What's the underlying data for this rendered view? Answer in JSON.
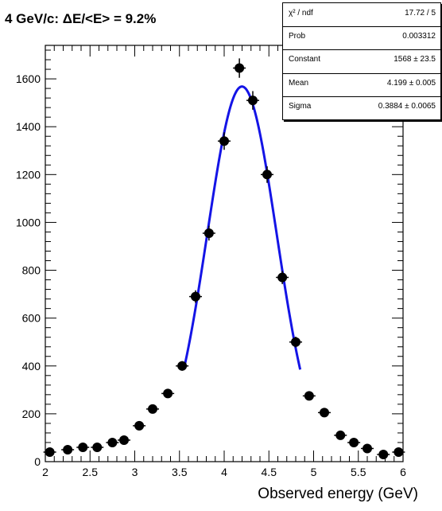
{
  "title": "4 GeV/c: ΔE/<E> = 9.2%",
  "stats": [
    {
      "label": "χ² / ndf",
      "value": "17.72 / 5"
    },
    {
      "label": "Prob",
      "value": "0.003312"
    },
    {
      "label": "Constant",
      "value": "1568 ± 23.5"
    },
    {
      "label": "Mean",
      "value": "4.199 ± 0.005"
    },
    {
      "label": "Sigma",
      "value": "0.3884 ± 0.0065"
    }
  ],
  "colors": {
    "fit": "#1414e6",
    "points": "#000000"
  },
  "chart_data": {
    "type": "scatter",
    "title": "4 GeV/c: ΔE/<E> = 9.2%",
    "xlabel": "Observed energy (GeV)",
    "ylabel": "",
    "xlim": [
      2,
      6
    ],
    "ylim": [
      0,
      1740
    ],
    "x_ticks": [
      "2",
      "2.5",
      "3",
      "3.5",
      "4",
      "4.5",
      "5",
      "5.5",
      "6"
    ],
    "y_ticks": [
      "0",
      "200",
      "400",
      "600",
      "800",
      "1000",
      "1200",
      "1400",
      "1600"
    ],
    "grid": false,
    "series": [
      {
        "kind": "points",
        "x": [
          2.05,
          2.25,
          2.42,
          2.58,
          2.75,
          2.88,
          3.05,
          3.2,
          3.37,
          3.53,
          3.68,
          3.83,
          4.0,
          4.17,
          4.32,
          4.48,
          4.65,
          4.8,
          4.95,
          5.12,
          5.3,
          5.45,
          5.6,
          5.78,
          5.95
        ],
        "y": [
          40,
          50,
          60,
          60,
          80,
          90,
          150,
          220,
          285,
          400,
          690,
          955,
          1340,
          1645,
          1510,
          1200,
          770,
          500,
          275,
          205,
          110,
          80,
          55,
          30,
          40
        ]
      },
      {
        "kind": "fit",
        "model": "gaussian",
        "constant": 1568,
        "mean": 4.199,
        "sigma": 0.3884,
        "range": [
          3.55,
          4.85
        ]
      }
    ]
  }
}
